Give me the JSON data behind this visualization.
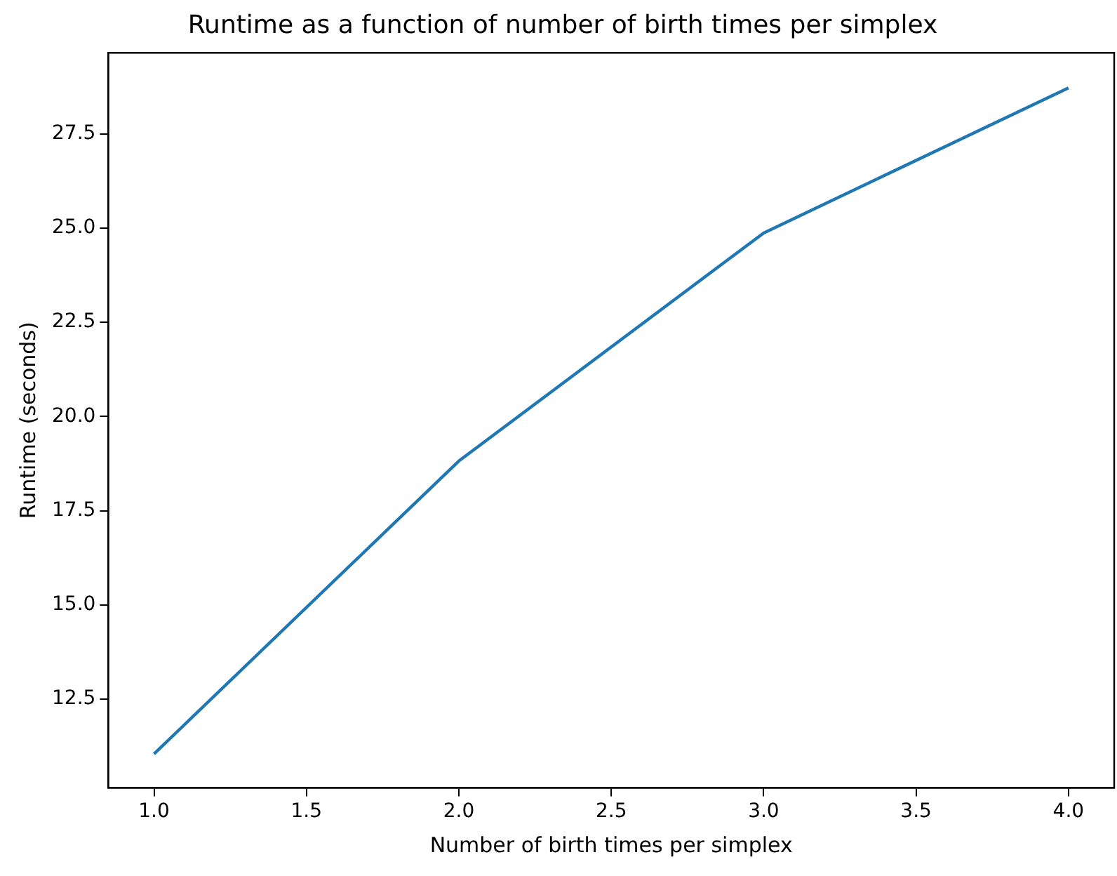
{
  "chart_data": {
    "type": "line",
    "title": "Runtime as a function of number of birth times per simplex",
    "xlabel": "Number of birth times per simplex",
    "ylabel": "Runtime (seconds)",
    "x": [
      1,
      2,
      3,
      4
    ],
    "series": [
      {
        "color": "#1f77b4",
        "values": [
          11.05,
          18.82,
          24.87,
          28.72
        ]
      }
    ],
    "xlim": [
      0.85,
      4.15
    ],
    "xticks": [
      {
        "value": 1,
        "label": "1.0"
      },
      {
        "value": 1.5,
        "label": "1.5"
      },
      {
        "value": 2,
        "label": "2.0"
      },
      {
        "value": 2.5,
        "label": "2.5"
      },
      {
        "value": 3,
        "label": "3.0"
      },
      {
        "value": 3.5,
        "label": "3.5"
      },
      {
        "value": 4,
        "label": "4.0"
      }
    ],
    "ylim": [
      10.15,
      29.65
    ],
    "yticks": [
      {
        "value": 12.5,
        "label": "12.5"
      },
      {
        "value": 15,
        "label": "15.0"
      },
      {
        "value": 17.5,
        "label": "17.5"
      },
      {
        "value": 20,
        "label": "20.0"
      },
      {
        "value": 22.5,
        "label": "22.5"
      },
      {
        "value": 25,
        "label": "25.0"
      },
      {
        "value": 27.5,
        "label": "27.5"
      }
    ],
    "grid": false,
    "legend": false,
    "marker": "none",
    "line_style": "solid"
  }
}
